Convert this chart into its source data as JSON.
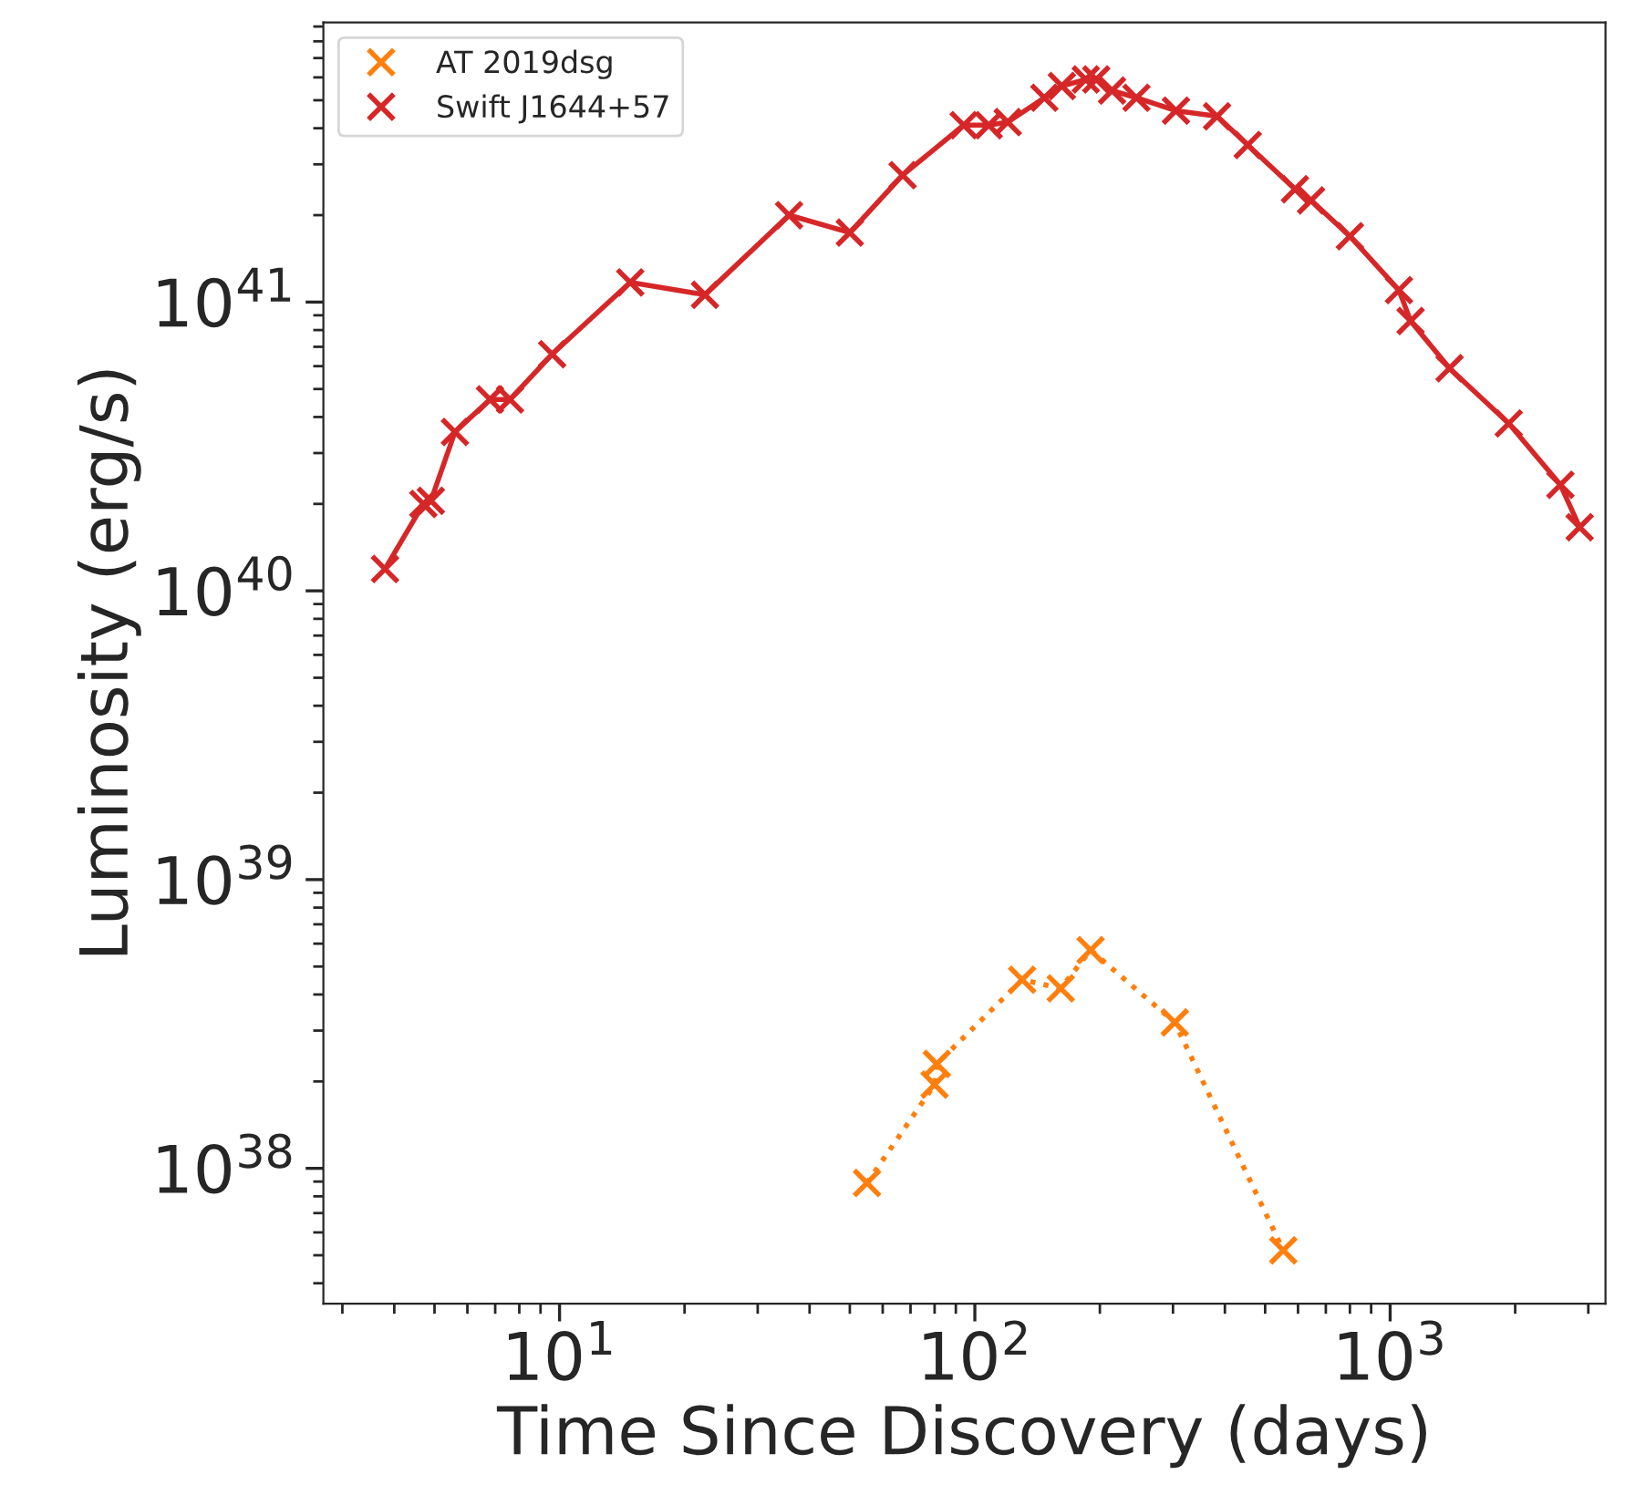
{
  "chart_data": {
    "type": "line",
    "xlabel": "Time Since Discovery (days)",
    "ylabel": "Luminosity (erg/s)",
    "log": "xy",
    "xlim": [
      2.7,
      3300
    ],
    "ylim": [
      3.4e+37,
      9.3e+41
    ],
    "xticks": [
      {
        "value": 10,
        "label": "10$^{1}$"
      },
      {
        "value": 100,
        "label": "10$^{2}$"
      },
      {
        "value": 1000,
        "label": "10$^{3}$"
      }
    ],
    "yticks": [
      {
        "value": 1e+38,
        "label": "10$^{38}$"
      },
      {
        "value": 1e+39,
        "label": "10$^{39}$"
      },
      {
        "value": 1e+40,
        "label": "10$^{40}$"
      },
      {
        "value": 1e+41,
        "label": "10$^{41}$"
      }
    ],
    "grid": false,
    "legend": "top left",
    "marker": "cross",
    "series": [
      {
        "name": "AT 2019dsg",
        "color": "#ff7f0e",
        "line_style": "dotted",
        "x": [
          55,
          80,
          81,
          130,
          161,
          190,
          303,
          553
        ],
        "values": [
          8.9e+37,
          1.95e+38,
          2.3e+38,
          4.5e+38,
          4.2e+38,
          5.7e+38,
          3.2e+38,
          5.2e+37
        ]
      },
      {
        "name": "Swift J1644+57",
        "color": "#d62728",
        "line_style": "solid",
        "x": [
          3.8,
          4.7,
          4.9,
          5.6,
          6.8,
          7.6,
          9.6,
          14.8,
          22.4,
          35.7,
          50,
          67,
          94,
          108,
          120,
          147,
          162,
          185,
          196,
          214,
          245,
          305,
          383,
          454,
          590,
          645,
          800,
          1050,
          1120,
          1390,
          1930,
          2570,
          2860
        ],
        "values": [
          1.19e+40,
          2e+40,
          2.05e+40,
          3.55e+40,
          4.6e+40,
          4.6e+40,
          6.6e+40,
          1.17e+41,
          1.06e+41,
          2e+41,
          1.74e+41,
          2.75e+41,
          4.1e+41,
          4.1e+41,
          4.2e+41,
          5.1e+41,
          5.6e+41,
          5.9e+41,
          5.9e+41,
          5.4e+41,
          5.1e+41,
          4.6e+41,
          4.4e+41,
          3.5e+41,
          2.46e+41,
          2.25e+41,
          1.69e+41,
          1.1e+41,
          8.6e+40,
          5.9e+40,
          3.8e+40,
          2.33e+40,
          1.66e+40
        ]
      }
    ]
  }
}
